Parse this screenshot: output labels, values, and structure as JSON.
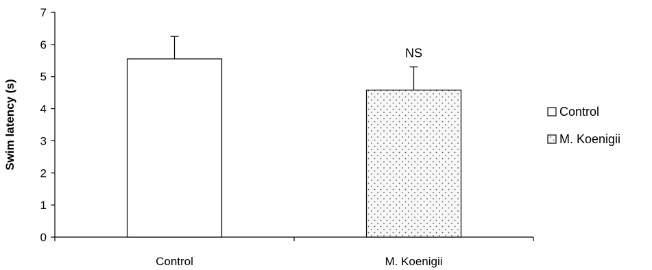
{
  "chart_data": {
    "type": "bar",
    "categories": [
      "Control",
      "M. Koenigii"
    ],
    "series": [
      {
        "values": [
          5.55,
          4.58
        ],
        "error_plus": [
          0.7,
          0.72
        ]
      }
    ],
    "annotations": [
      "",
      "NS"
    ],
    "title": "",
    "xlabel": "",
    "ylabel": "Swim latency (s)",
    "ylim": [
      0,
      7
    ],
    "yticks": [
      "0",
      "1",
      "2",
      "3",
      "4",
      "5",
      "6",
      "7"
    ],
    "grid": false,
    "legend": {
      "placement": "right",
      "entries": [
        "Control",
        "M. Koenigii"
      ]
    },
    "colors": {
      "bar_fill_control": "#ffffff",
      "bar_fill_treatment_pattern": "dotted",
      "stroke": "#000000"
    }
  }
}
